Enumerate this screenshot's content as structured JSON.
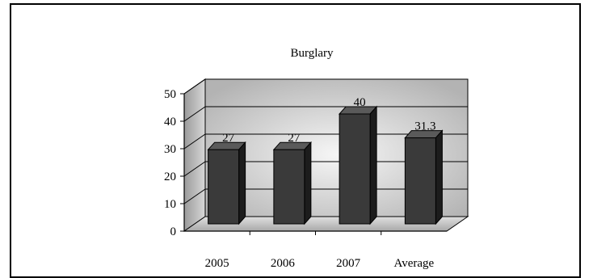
{
  "chart_data": {
    "type": "bar",
    "title": "Burglary",
    "categories": [
      "2005",
      "2006",
      "2007",
      "Average"
    ],
    "values": [
      27,
      27,
      40,
      31.3
    ],
    "value_labels": [
      "27",
      "27",
      "40",
      "31.3"
    ],
    "y_ticks": [
      "0",
      "10",
      "20",
      "30",
      "40",
      "50"
    ],
    "ylim": [
      0,
      50
    ],
    "grid": true,
    "legend": "none",
    "three_d": true,
    "colors": {
      "bar_front": "#3a3a3a",
      "bar_side": "#1c1c1c",
      "bar_top": "#5a5a5a",
      "wall_outer": "#b5b5b5",
      "wall_inner": "#f4f4f4",
      "floor": "#c9c9c9"
    }
  }
}
